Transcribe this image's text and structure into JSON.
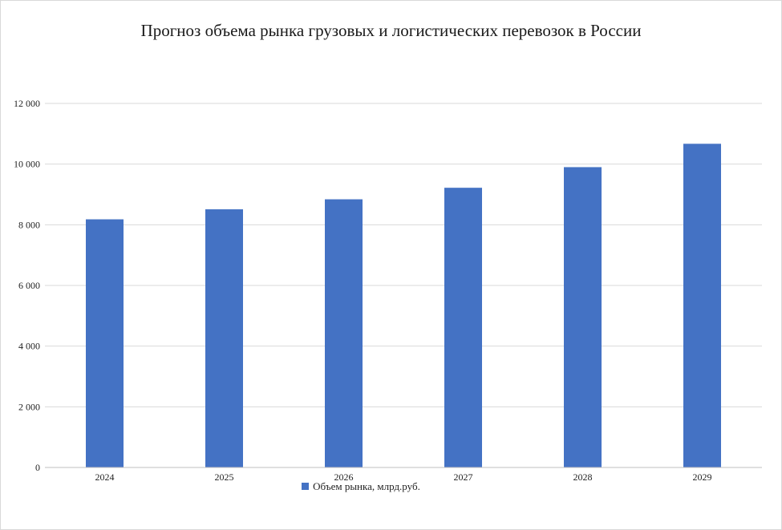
{
  "colors": {
    "bar": "#4472c4",
    "grid": "#d9d9d9"
  },
  "chart_data": {
    "type": "bar",
    "title": "Прогноз объема рынка грузовых и логистических перевозок в России",
    "categories": [
      "2024",
      "2025",
      "2026",
      "2027",
      "2028",
      "2029"
    ],
    "series": [
      {
        "name": "Объем рынка, млрд.руб.",
        "values": [
          8180,
          8510,
          8840,
          9220,
          9900,
          10670
        ]
      }
    ],
    "ylim": [
      0,
      12000
    ],
    "yticks": [
      0,
      2000,
      4000,
      6000,
      8000,
      10000,
      12000
    ],
    "ytick_labels": [
      "0",
      "2 000",
      "4 000",
      "6 000",
      "8 000",
      "10 000",
      "12 000"
    ],
    "grid": true,
    "legend_position": "bottom"
  }
}
